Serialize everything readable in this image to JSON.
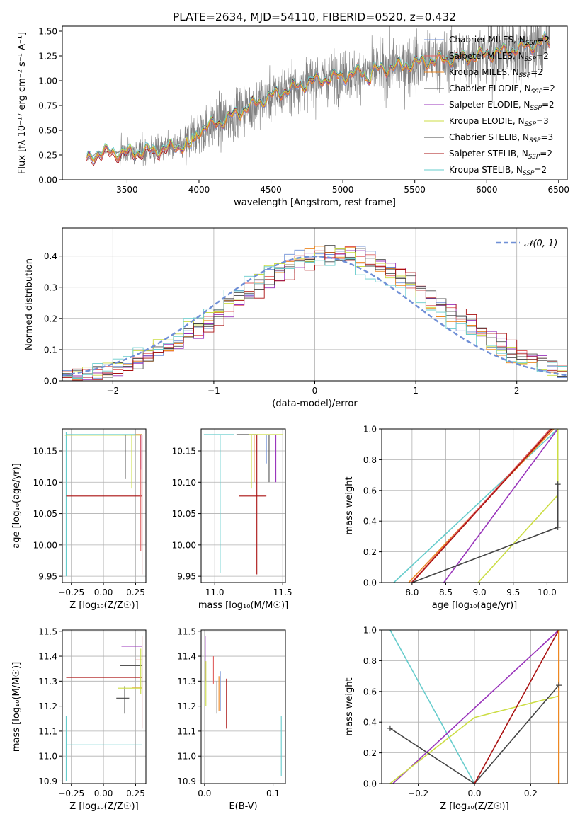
{
  "title": "PLATE=2634, MJD=54110, FIBERID=0520, z=0.432",
  "colors": {
    "chabrier_miles": "#6f8fd6",
    "salpeter_miles": "#e06060",
    "kroupa_miles": "#ee8822",
    "chabrier_elodie": "#555555",
    "salpeter_elodie": "#9933bb",
    "kroupa_elodie": "#ccdd44",
    "chabrier_stelib": "#444444",
    "salpeter_stelib": "#aa1111",
    "kroupa_stelib": "#66cccc",
    "data": "#808080"
  },
  "chart_data": [
    {
      "id": "spectrum",
      "type": "line",
      "title": "PLATE=2634, MJD=54110, FIBERID=0520, z=0.432",
      "xlabel": "wavelength [Angstrom, rest frame]",
      "ylabel": "Flux [fλ 10⁻¹⁷ erg cm⁻² s⁻¹ A⁻¹]",
      "xlim": [
        3050,
        6560
      ],
      "ylim": [
        0,
        1.55
      ],
      "xticks": [
        3500,
        4000,
        4500,
        5000,
        5500,
        6000,
        6500
      ],
      "yticks": [
        0.0,
        0.25,
        0.5,
        0.75,
        1.0,
        1.25,
        1.5
      ],
      "grid": false,
      "legend_position": "upper-right",
      "model_continuum": [
        [
          3220,
          0.2
        ],
        [
          3300,
          0.28
        ],
        [
          3500,
          0.28
        ],
        [
          3700,
          0.3
        ],
        [
          3900,
          0.35
        ],
        [
          4000,
          0.5
        ],
        [
          4200,
          0.62
        ],
        [
          4400,
          0.78
        ],
        [
          4600,
          0.9
        ],
        [
          4800,
          1.0
        ],
        [
          5000,
          1.05
        ],
        [
          5200,
          1.1
        ],
        [
          5400,
          1.15
        ],
        [
          5600,
          1.2
        ],
        [
          5800,
          1.22
        ],
        [
          6000,
          1.27
        ],
        [
          6200,
          1.32
        ],
        [
          6440,
          1.4
        ]
      ],
      "legend": [
        "Chabrier MILES, NSSP=2",
        "Salpeter MILES, NSSP=2",
        "Kroupa MILES, NSSP=2",
        "Chabrier ELODIE, NSSP=2",
        "Salpeter ELODIE, NSSP=2",
        "Kroupa ELODIE, NSSP=3",
        "Chabrier STELIB, NSSP=3",
        "Salpeter STELIB, NSSP=2",
        "Kroupa STELIB, NSSP=2"
      ]
    },
    {
      "id": "residuals",
      "type": "line",
      "xlabel": "(data-model)/error",
      "ylabel": "Normed distribution",
      "xlim": [
        -2.5,
        2.5
      ],
      "ylim": [
        0,
        0.49
      ],
      "xticks": [
        -2,
        -1,
        0,
        1,
        2
      ],
      "yticks": [
        0.0,
        0.1,
        0.2,
        0.3,
        0.4
      ],
      "grid": true,
      "legend": [
        "𝒩(0, 1)"
      ],
      "legend_position": "upper-right",
      "hist_centers": [
        -2.45,
        -2.35,
        -2.25,
        -2.15,
        -2.05,
        -1.95,
        -1.85,
        -1.75,
        -1.65,
        -1.55,
        -1.45,
        -1.35,
        -1.25,
        -1.15,
        -1.05,
        -0.95,
        -0.85,
        -0.75,
        -0.65,
        -0.55,
        -0.45,
        -0.35,
        -0.25,
        -0.15,
        -0.05,
        0.05,
        0.15,
        0.25,
        0.35,
        0.45,
        0.55,
        0.65,
        0.75,
        0.85,
        0.95,
        1.05,
        1.15,
        1.25,
        1.35,
        1.45,
        1.55,
        1.65,
        1.75,
        1.85,
        1.95,
        2.05,
        2.15,
        2.25,
        2.35,
        2.45
      ]
    },
    {
      "id": "age-vs-Z",
      "type": "scatter",
      "xlabel": "Z [log₁₀(Z/Z☉)]",
      "ylabel": "age  [log₁₀(age/yr)]",
      "xlim": [
        -0.32,
        0.33
      ],
      "ylim": [
        9.94,
        10.185
      ],
      "xticks": [
        -0.25,
        0.0,
        0.25
      ],
      "xtick_labels": [
        "−0.25",
        "0.00",
        "0.25"
      ],
      "yticks": [
        9.95,
        10.0,
        10.05,
        10.1,
        10.15
      ],
      "grid": true
    },
    {
      "id": "age-vs-mass",
      "type": "scatter",
      "xlabel": "mass [log₁₀(M/M☉)]",
      "xlim": [
        10.9,
        11.52
      ],
      "ylim": [
        9.94,
        10.185
      ],
      "xticks": [
        11.0,
        11.5
      ],
      "xtick_labels": [
        "11.0",
        "11.5"
      ],
      "yticks": [
        9.95,
        10.0,
        10.05,
        10.1,
        10.15
      ],
      "grid": true
    },
    {
      "id": "weight-vs-age",
      "type": "line",
      "xlabel": "age  [log₁₀(age/yr)]",
      "ylabel": "mass weight",
      "xlim": [
        7.55,
        10.3
      ],
      "ylim": [
        0,
        1.0
      ],
      "xticks": [
        8.0,
        8.5,
        9.0,
        9.5,
        10.0
      ],
      "yticks": [
        0.0,
        0.2,
        0.4,
        0.6,
        0.8,
        1.0
      ],
      "grid": true
    },
    {
      "id": "mass-vs-Z",
      "type": "scatter",
      "xlabel": "Z [log₁₀(Z/Z☉)]",
      "ylabel": "mass [log₁₀(M/M☉)]",
      "xlim": [
        -0.32,
        0.33
      ],
      "ylim": [
        10.89,
        11.505
      ],
      "xticks": [
        -0.25,
        0.0,
        0.25
      ],
      "xtick_labels": [
        "−0.25",
        "0.00",
        "0.25"
      ],
      "yticks": [
        10.9,
        11.0,
        11.1,
        11.2,
        11.3,
        11.4,
        11.5
      ],
      "grid": true
    },
    {
      "id": "mass-vs-ebv",
      "type": "scatter",
      "xlabel": "E(B-V)",
      "xlim": [
        -0.005,
        0.118
      ],
      "ylim": [
        10.89,
        11.505
      ],
      "xticks": [
        0.0,
        0.1
      ],
      "xtick_labels": [
        "0.0",
        "0.1"
      ],
      "yticks": [
        10.9,
        11.0,
        11.1,
        11.2,
        11.3,
        11.4,
        11.5
      ],
      "grid": true
    },
    {
      "id": "weight-vs-Z",
      "type": "line",
      "xlabel": "Z [log₁₀(Z/Z☉)]",
      "ylabel": "mass weight",
      "xlim": [
        -0.33,
        0.33
      ],
      "ylim": [
        0,
        1.0
      ],
      "xticks": [
        -0.2,
        0.0,
        0.2
      ],
      "xtick_labels": [
        "−0.2",
        "0.0",
        "0.2"
      ],
      "yticks": [
        0.0,
        0.2,
        0.4,
        0.6,
        0.8,
        1.0
      ],
      "grid": true
    }
  ]
}
